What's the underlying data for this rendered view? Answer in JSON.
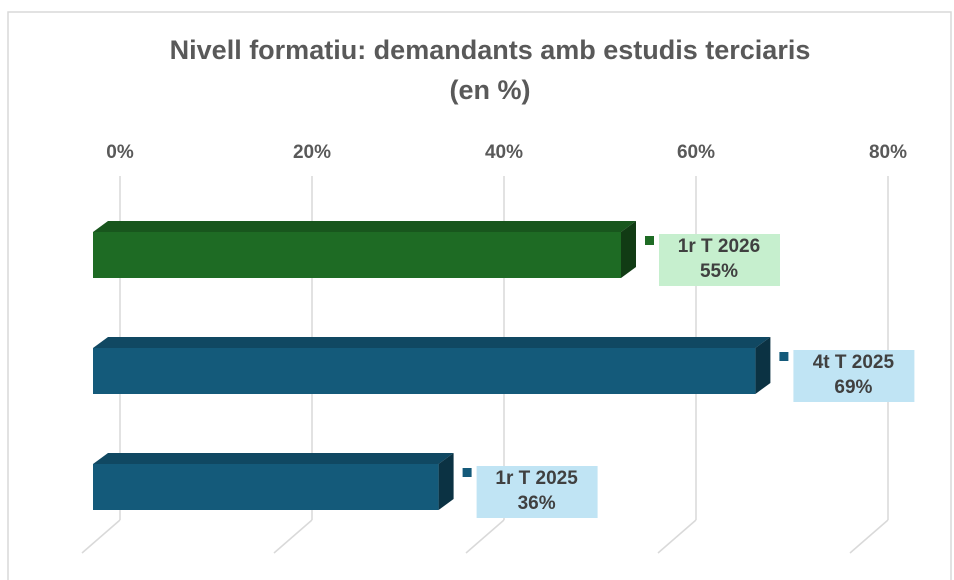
{
  "chart_data": {
    "type": "bar",
    "orientation": "horizontal",
    "title": "Nivell formatiu: demandants amb estudis terciaris (en %)",
    "categories": [
      "1r T 2026",
      "4t T 2025",
      "1r T 2025"
    ],
    "values": [
      55,
      69,
      36
    ],
    "value_labels": [
      "55%",
      "69%",
      "36%"
    ],
    "colors": [
      "#1e6b24",
      "#145a7a",
      "#145a7a"
    ],
    "label_backgrounds": [
      "#c6efce",
      "#c0e4f4",
      "#c0e4f4"
    ],
    "xlim": [
      0,
      80
    ],
    "xticks": [
      {
        "value": 0,
        "label": "0%"
      },
      {
        "value": 20,
        "label": "20%"
      },
      {
        "value": 40,
        "label": "40%"
      },
      {
        "value": 60,
        "label": "60%"
      },
      {
        "value": 80,
        "label": "80%"
      }
    ],
    "grid": true
  }
}
